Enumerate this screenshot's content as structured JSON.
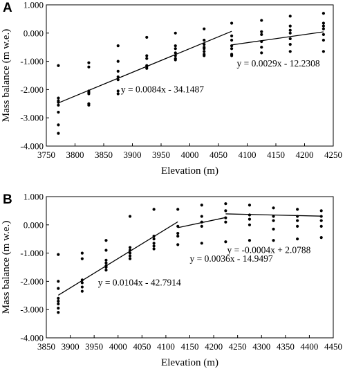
{
  "chart_data": [
    {
      "panel": "A",
      "type": "scatter",
      "xlabel": "Elevation (m)",
      "ylabel": "Mass balance (m w.e.)",
      "xlim": [
        3750,
        4250
      ],
      "ylim": [
        -4000,
        1000
      ],
      "xticks": [
        "3750",
        "3800",
        "3850",
        "3900",
        "3950",
        "4000",
        "4050",
        "4100",
        "4150",
        "4200",
        "4250"
      ],
      "yticks": [
        "-4.000",
        "-3.000",
        "-2.000",
        "-1.000",
        "0.000",
        "1.000"
      ],
      "points": [
        [
          3771,
          -1150
        ],
        [
          3771,
          -2300
        ],
        [
          3771,
          -2400
        ],
        [
          3771,
          -2450
        ],
        [
          3771,
          -2550
        ],
        [
          3771,
          -2800
        ],
        [
          3771,
          -3250
        ],
        [
          3771,
          -3550
        ],
        [
          3824,
          -1050
        ],
        [
          3824,
          -1200
        ],
        [
          3824,
          -2050
        ],
        [
          3824,
          -2100
        ],
        [
          3824,
          -2150
        ],
        [
          3824,
          -2500
        ],
        [
          3824,
          -2550
        ],
        [
          3875,
          -450
        ],
        [
          3875,
          -1000
        ],
        [
          3875,
          -1350
        ],
        [
          3875,
          -1550
        ],
        [
          3875,
          -1650
        ],
        [
          3875,
          -2050
        ],
        [
          3875,
          -2150
        ],
        [
          3925,
          -150
        ],
        [
          3925,
          -800
        ],
        [
          3925,
          -900
        ],
        [
          3925,
          -1150
        ],
        [
          3925,
          -1200
        ],
        [
          3925,
          -1250
        ],
        [
          3975,
          0
        ],
        [
          3975,
          -450
        ],
        [
          3975,
          -550
        ],
        [
          3975,
          -700
        ],
        [
          3975,
          -800
        ],
        [
          3975,
          -900
        ],
        [
          3975,
          -950
        ],
        [
          4025,
          150
        ],
        [
          4025,
          -250
        ],
        [
          4025,
          -400
        ],
        [
          4025,
          -500
        ],
        [
          4025,
          -550
        ],
        [
          4025,
          -650
        ],
        [
          4025,
          -750
        ],
        [
          4025,
          -800
        ],
        [
          4073,
          350
        ],
        [
          4073,
          -100
        ],
        [
          4073,
          -250
        ],
        [
          4073,
          -450
        ],
        [
          4073,
          -550
        ],
        [
          4073,
          -750
        ],
        [
          4073,
          -800
        ],
        [
          4125,
          450
        ],
        [
          4125,
          50
        ],
        [
          4125,
          -50
        ],
        [
          4125,
          -300
        ],
        [
          4125,
          -500
        ],
        [
          4125,
          -700
        ],
        [
          4175,
          600
        ],
        [
          4175,
          250
        ],
        [
          4175,
          100
        ],
        [
          4175,
          0
        ],
        [
          4175,
          -200
        ],
        [
          4175,
          -400
        ],
        [
          4175,
          -650
        ],
        [
          4233,
          700
        ],
        [
          4233,
          350
        ],
        [
          4233,
          250
        ],
        [
          4233,
          150
        ],
        [
          4233,
          -50
        ],
        [
          4233,
          -250
        ],
        [
          4233,
          -650
        ]
      ],
      "fits": [
        {
          "x": [
            3771,
            4073
          ],
          "slope": 0.0084,
          "intercept": -34.1487
        },
        {
          "x": [
            4073,
            4233
          ],
          "slope": 0.0029,
          "intercept": -12.2308
        }
      ],
      "equations": [
        {
          "text": "y = 0.0084x - 34.1487",
          "x": 3880,
          "y": -2100
        },
        {
          "text": "y = 0.0029x - 12.2308",
          "x": 4082,
          "y": -1180
        }
      ]
    },
    {
      "panel": "B",
      "type": "scatter",
      "xlabel": "Elevation (m)",
      "ylabel": "Mass balance (m w.e.)",
      "xlim": [
        3850,
        4450
      ],
      "ylim": [
        -4000,
        1000
      ],
      "xticks": [
        "3850",
        "3900",
        "3950",
        "4000",
        "4050",
        "4100",
        "4150",
        "4200",
        "4250",
        "4300",
        "4350",
        "4400",
        "4450"
      ],
      "yticks": [
        "-4.000",
        "-3.000",
        "-2.000",
        "-1.000",
        "0.000",
        "1.000"
      ],
      "points": [
        [
          3875,
          -1050
        ],
        [
          3875,
          -2000
        ],
        [
          3875,
          -2250
        ],
        [
          3875,
          -2600
        ],
        [
          3875,
          -2700
        ],
        [
          3875,
          -2800
        ],
        [
          3875,
          -2950
        ],
        [
          3875,
          -3100
        ],
        [
          3925,
          -1000
        ],
        [
          3925,
          -1200
        ],
        [
          3925,
          -1950
        ],
        [
          3925,
          -2050
        ],
        [
          3925,
          -2200
        ],
        [
          3925,
          -2350
        ],
        [
          3975,
          -550
        ],
        [
          3975,
          -900
        ],
        [
          3975,
          -1250
        ],
        [
          3975,
          -1350
        ],
        [
          3975,
          -1450
        ],
        [
          3975,
          -1500
        ],
        [
          3975,
          -1600
        ],
        [
          4025,
          300
        ],
        [
          4025,
          -800
        ],
        [
          4025,
          -900
        ],
        [
          4025,
          -1000
        ],
        [
          4025,
          -1100
        ],
        [
          4025,
          -1200
        ],
        [
          4075,
          550
        ],
        [
          4075,
          -400
        ],
        [
          4075,
          -500
        ],
        [
          4075,
          -650
        ],
        [
          4075,
          -750
        ],
        [
          4075,
          -850
        ],
        [
          4125,
          550
        ],
        [
          4125,
          -50
        ],
        [
          4125,
          -300
        ],
        [
          4125,
          -400
        ],
        [
          4125,
          -700
        ],
        [
          4175,
          700
        ],
        [
          4175,
          300
        ],
        [
          4175,
          100
        ],
        [
          4175,
          -50
        ],
        [
          4175,
          -650
        ],
        [
          4225,
          750
        ],
        [
          4225,
          500
        ],
        [
          4225,
          250
        ],
        [
          4225,
          100
        ],
        [
          4225,
          -600
        ],
        [
          4275,
          700
        ],
        [
          4275,
          350
        ],
        [
          4275,
          200
        ],
        [
          4275,
          0
        ],
        [
          4275,
          -550
        ],
        [
          4325,
          600
        ],
        [
          4325,
          300
        ],
        [
          4325,
          150
        ],
        [
          4325,
          -150
        ],
        [
          4325,
          -550
        ],
        [
          4375,
          550
        ],
        [
          4375,
          300
        ],
        [
          4375,
          150
        ],
        [
          4375,
          -50
        ],
        [
          4375,
          -500
        ],
        [
          4425,
          500
        ],
        [
          4425,
          300
        ],
        [
          4425,
          150
        ],
        [
          4425,
          -50
        ],
        [
          4425,
          -450
        ]
      ],
      "fits": [
        {
          "x": [
            3875,
            4125
          ],
          "slope": 0.0104,
          "intercept": -42.7914
        },
        {
          "x": [
            4125,
            4225
          ],
          "slope": 0.0036,
          "intercept": -14.9497
        },
        {
          "x": [
            4225,
            4425
          ],
          "slope": -0.0004,
          "intercept": 2.0788
        }
      ],
      "equations": [
        {
          "text": "y = 0.0104x - 42.7914",
          "x": 3958,
          "y": -2150
        },
        {
          "text": "y = 0.0036x - 14.9497",
          "x": 4150,
          "y": -1300
        },
        {
          "text": "y = -0.0004x + 2.0788",
          "x": 4228,
          "y": -1000
        }
      ]
    }
  ]
}
